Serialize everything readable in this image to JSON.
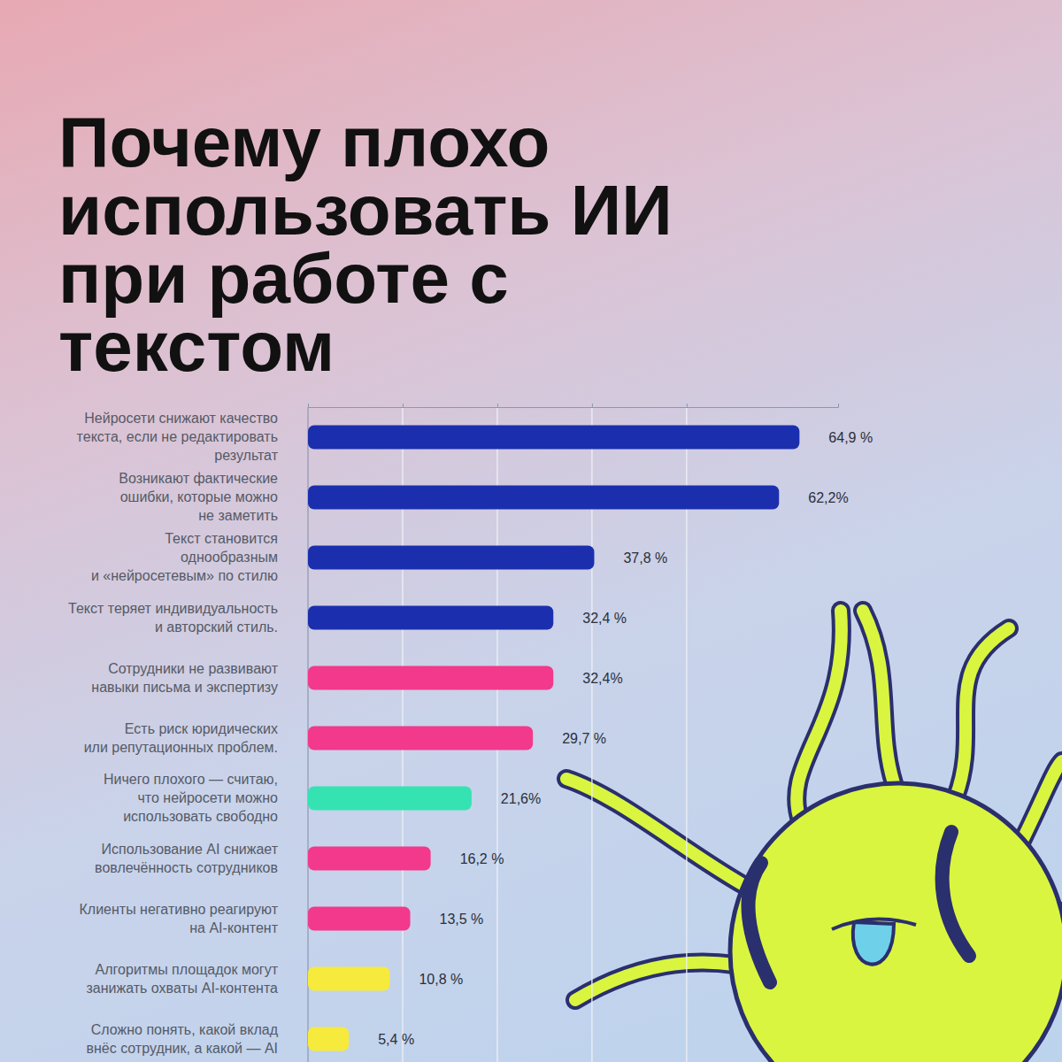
{
  "chart_data": {
    "type": "bar",
    "title": "Почему плохо\nиспользовать ИИ\nпри работе с\nтекстом",
    "orientation": "horizontal",
    "categories": [
      "Нейросети снижают качество\nтекста, если не редактировать\nрезультат",
      "Возникают фактические\nошибки, которые можно\nне заметить",
      "Текст становится\nоднообразным\nи «нейросетевым» по стилю",
      "Текст теряет индивидуальность\nи авторский стиль.",
      "Сотрудники не развивают\nнавыки письма и экспертизу",
      "Есть риск юридических\nили репутационных проблем.",
      "Ничего плохого — считаю,\nчто нейросети можно\nиспользовать свободно",
      "Использование AI снижает\nвовлечённость сотрудников",
      "Клиенты негативно реагируют\nна AI-контент",
      "Алгоритмы площадок могут\nзанижать охваты AI-контента",
      "Сложно понять, какой вклад\nвнёс сотрудник, а какой — AI"
    ],
    "values": [
      64.9,
      62.2,
      37.8,
      32.4,
      32.4,
      29.7,
      21.6,
      16.2,
      13.5,
      10.8,
      5.4
    ],
    "value_labels": [
      "64,9 %",
      "62,2%",
      "37,8 %",
      "32,4 %",
      "32,4%",
      "29,7 %",
      "21,6%",
      "16,2 %",
      "13,5 %",
      "10,8 %",
      "5,4 %"
    ],
    "colors": [
      "#1b2fae",
      "#1b2fae",
      "#1b2fae",
      "#1b2fae",
      "#f2398b",
      "#f2398b",
      "#35e3b2",
      "#f2398b",
      "#f2398b",
      "#f6ea3c",
      "#f6ea3c"
    ],
    "xlim": [
      0,
      70
    ],
    "xticks": [
      0,
      12.5,
      25,
      37.5,
      50
    ],
    "grid": true,
    "data_labels": true,
    "tick_labels": false
  }
}
